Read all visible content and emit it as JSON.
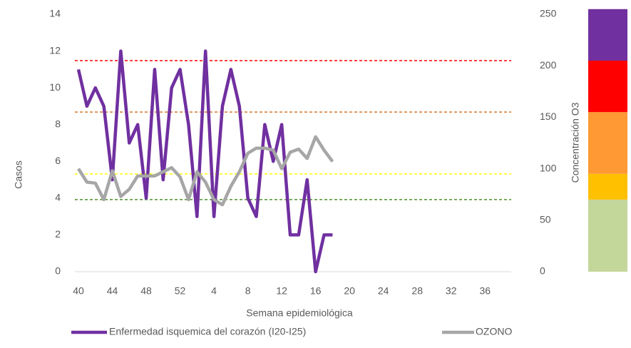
{
  "chart_data": {
    "type": "line",
    "x_label": "Semana epidemiológica",
    "y_label": "Casos",
    "y2_label": "Concentración O3",
    "categories": [
      40,
      null,
      null,
      null,
      44,
      null,
      null,
      null,
      48,
      null,
      null,
      null,
      52,
      null,
      null,
      null,
      4,
      null,
      null,
      null,
      8,
      null,
      null,
      null,
      12,
      null,
      null,
      null,
      16,
      null,
      null,
      null,
      20,
      null,
      null,
      null,
      24,
      null,
      null,
      null,
      28,
      null,
      null,
      null,
      32,
      null,
      null,
      null,
      36,
      null,
      null,
      null
    ],
    "series": [
      {
        "name": "Enfermedad isquemica del corazón (I20-I25)",
        "color": "#7030a0",
        "values": [
          11,
          9,
          10,
          9,
          5,
          12,
          7,
          8,
          4,
          11,
          5,
          10,
          11,
          8,
          3,
          12,
          3,
          9,
          11,
          9,
          4,
          3,
          8,
          6,
          8,
          2,
          2,
          5,
          0,
          2,
          2,
          null,
          null,
          null,
          null,
          null,
          null,
          null,
          null,
          null,
          null,
          null,
          null,
          null,
          null,
          null,
          null,
          null,
          null,
          null,
          null,
          null
        ]
      },
      {
        "name": "OZONO",
        "color": "#a6a6a6",
        "axis": "y2",
        "values": [
          100,
          87,
          86,
          70,
          98,
          73,
          80,
          93,
          93,
          93,
          97,
          101,
          92,
          70,
          97,
          87,
          70,
          65,
          83,
          97,
          115,
          120,
          120,
          118,
          100,
          116,
          119,
          110,
          131,
          118,
          107,
          null,
          null,
          null,
          null,
          null,
          null,
          null,
          null,
          null,
          null,
          null,
          null,
          null,
          null,
          null,
          null,
          null,
          null,
          null,
          null,
          null
        ]
      }
    ],
    "ylim": [
      0,
      14
    ],
    "yticks": [
      0,
      2,
      4,
      6,
      8,
      10,
      12,
      14
    ],
    "y2lim": [
      0,
      250
    ],
    "y2ticks": [
      0,
      50,
      100,
      150,
      200,
      250
    ],
    "thresholds": [
      {
        "value": 205,
        "color": "#ff0000"
      },
      {
        "value": 155,
        "color": "#d9782d"
      },
      {
        "value": 95,
        "color": "#ffff00"
      },
      {
        "value": 70,
        "color": "#4f8f2f"
      }
    ],
    "scale_bands": [
      {
        "min": 0,
        "max": 70,
        "color": "#c4d79b"
      },
      {
        "min": 70,
        "max": 95,
        "color": "#ffc000"
      },
      {
        "min": 95,
        "max": 155,
        "color": "#ff9933"
      },
      {
        "min": 155,
        "max": 205,
        "color": "#ff0000"
      },
      {
        "min": 205,
        "max": 255,
        "color": "#7030a0"
      }
    ],
    "legend": "bottom"
  }
}
